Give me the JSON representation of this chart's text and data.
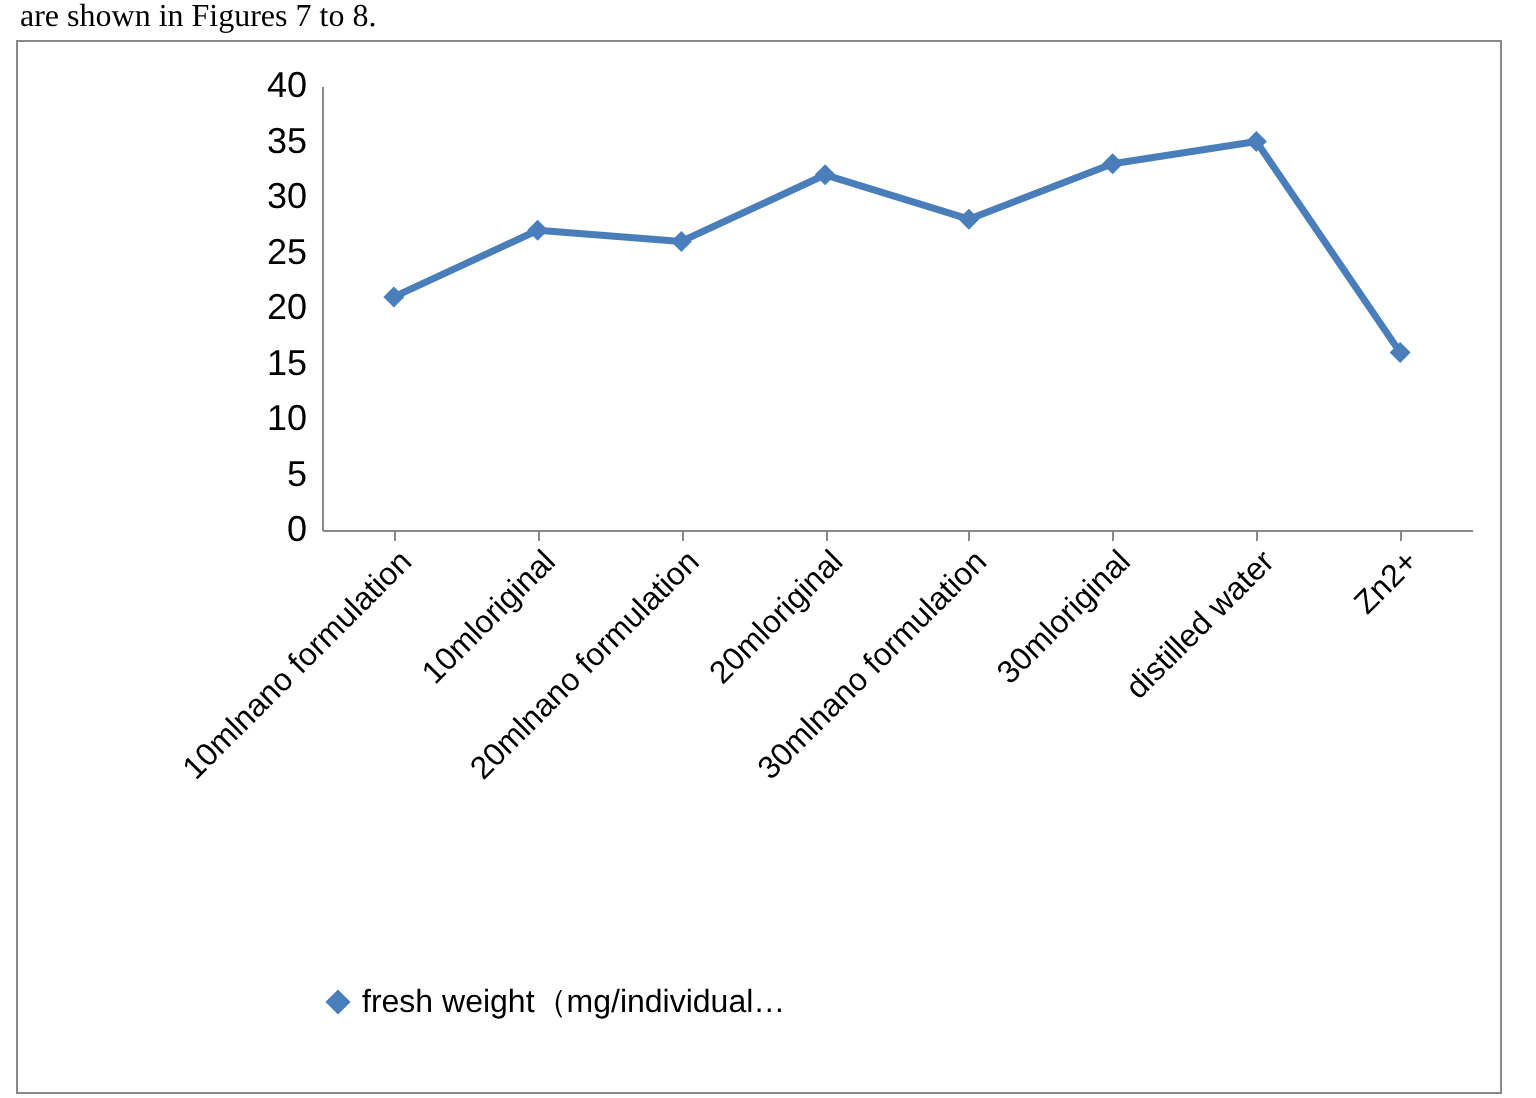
{
  "chart_data": {
    "type": "line",
    "categories": [
      "10mlnano formulation",
      "10mloriginal",
      "20mlnano formulation",
      "20mloriginal",
      "30mlnano formulation",
      "30mloriginal",
      "distilled water",
      "Zn2+"
    ],
    "series": [
      {
        "name": "fresh weight（mg/individual…",
        "color": "#4a7ebb",
        "values": [
          21,
          27,
          26,
          32,
          28,
          33,
          35,
          16
        ]
      }
    ],
    "ylim": [
      0,
      40
    ],
    "yticks": [
      0,
      5,
      10,
      15,
      20,
      25,
      30,
      35,
      40
    ],
    "grid": false,
    "legend": "bottom",
    "marker": "diamond",
    "line_style": "solid",
    "annotations": [
      "are shown in Figures 7 to 8."
    ]
  }
}
